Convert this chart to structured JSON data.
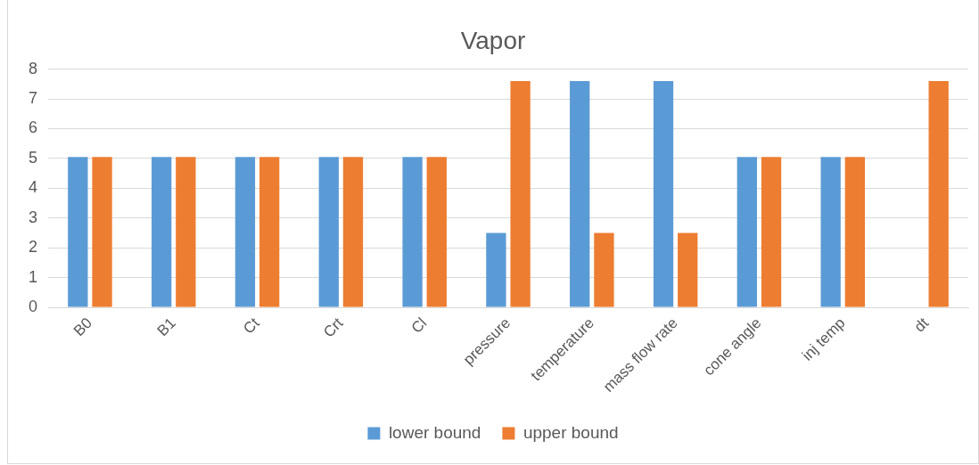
{
  "chart_data": {
    "type": "bar",
    "title": "Vapor",
    "categories": [
      "B0",
      "B1",
      "Ct",
      "Crt",
      "Cl",
      "pressure",
      "temperature",
      "mass flow rate",
      "cone angle",
      "inj temp",
      "dt"
    ],
    "series": [
      {
        "name": "lower bound",
        "color": "#5b9bd5",
        "values": [
          5.05,
          5.05,
          5.05,
          5.05,
          5.05,
          2.5,
          7.6,
          7.6,
          5.05,
          5.05,
          null
        ]
      },
      {
        "name": "upper bound",
        "color": "#ed7d31",
        "values": [
          5.05,
          5.05,
          5.05,
          5.05,
          5.05,
          7.6,
          2.5,
          2.5,
          5.05,
          5.05,
          7.6
        ]
      }
    ],
    "ylim": [
      0,
      8
    ],
    "yticks": [
      0,
      1,
      2,
      3,
      4,
      5,
      6,
      7,
      8
    ],
    "grid": "y",
    "legend": "bottom"
  }
}
